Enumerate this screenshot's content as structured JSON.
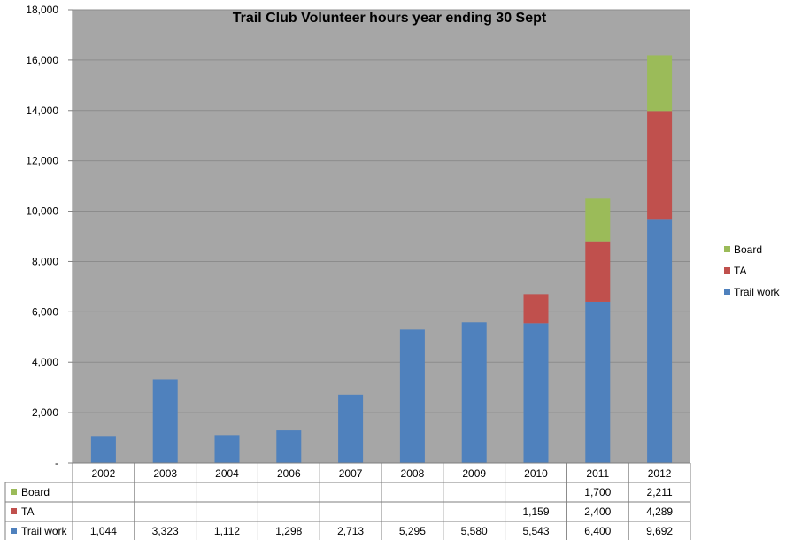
{
  "chart_data": {
    "type": "bar",
    "stacked": true,
    "title": "Trail Club Volunteer hours year ending 30 Sept",
    "xlabel": "",
    "ylabel": "",
    "categories": [
      "2002",
      "2003",
      "2004",
      "2006",
      "2007",
      "2008",
      "2009",
      "2010",
      "2011",
      "2012"
    ],
    "ylim": [
      0,
      18000
    ],
    "yticks": [
      0,
      2000,
      4000,
      6000,
      8000,
      10000,
      12000,
      14000,
      16000,
      18000
    ],
    "ytick_labels": [
      "-",
      "2,000",
      "4,000",
      "6,000",
      "8,000",
      "10,000",
      "12,000",
      "14,000",
      "16,000",
      "18,000"
    ],
    "grid": true,
    "legend_position": "right",
    "plot_background": "#a6a6a6",
    "series": [
      {
        "name": "Trail work",
        "color": "#4f81bd",
        "values": [
          1044,
          3323,
          1112,
          1298,
          2713,
          5295,
          5580,
          5543,
          6400,
          9692
        ],
        "labels": [
          "1,044",
          "3,323",
          "1,112",
          "1,298",
          "2,713",
          "5,295",
          "5,580",
          "5,543",
          "6,400",
          "9,692"
        ]
      },
      {
        "name": "TA",
        "color": "#c0504d",
        "values": [
          null,
          null,
          null,
          null,
          null,
          null,
          null,
          1159,
          2400,
          4289
        ],
        "labels": [
          "",
          "",
          "",
          "",
          "",
          "",
          "",
          "1,159",
          "2,400",
          "4,289"
        ]
      },
      {
        "name": "Board",
        "color": "#9bbb59",
        "values": [
          null,
          null,
          null,
          null,
          null,
          null,
          null,
          null,
          1700,
          2211
        ],
        "labels": [
          "",
          "",
          "",
          "",
          "",
          "",
          "",
          "",
          "1,700",
          "2,211"
        ]
      }
    ],
    "legend_order": [
      "Board",
      "TA",
      "Trail work"
    ],
    "table_row_order": [
      "Board",
      "TA",
      "Trail work"
    ]
  }
}
